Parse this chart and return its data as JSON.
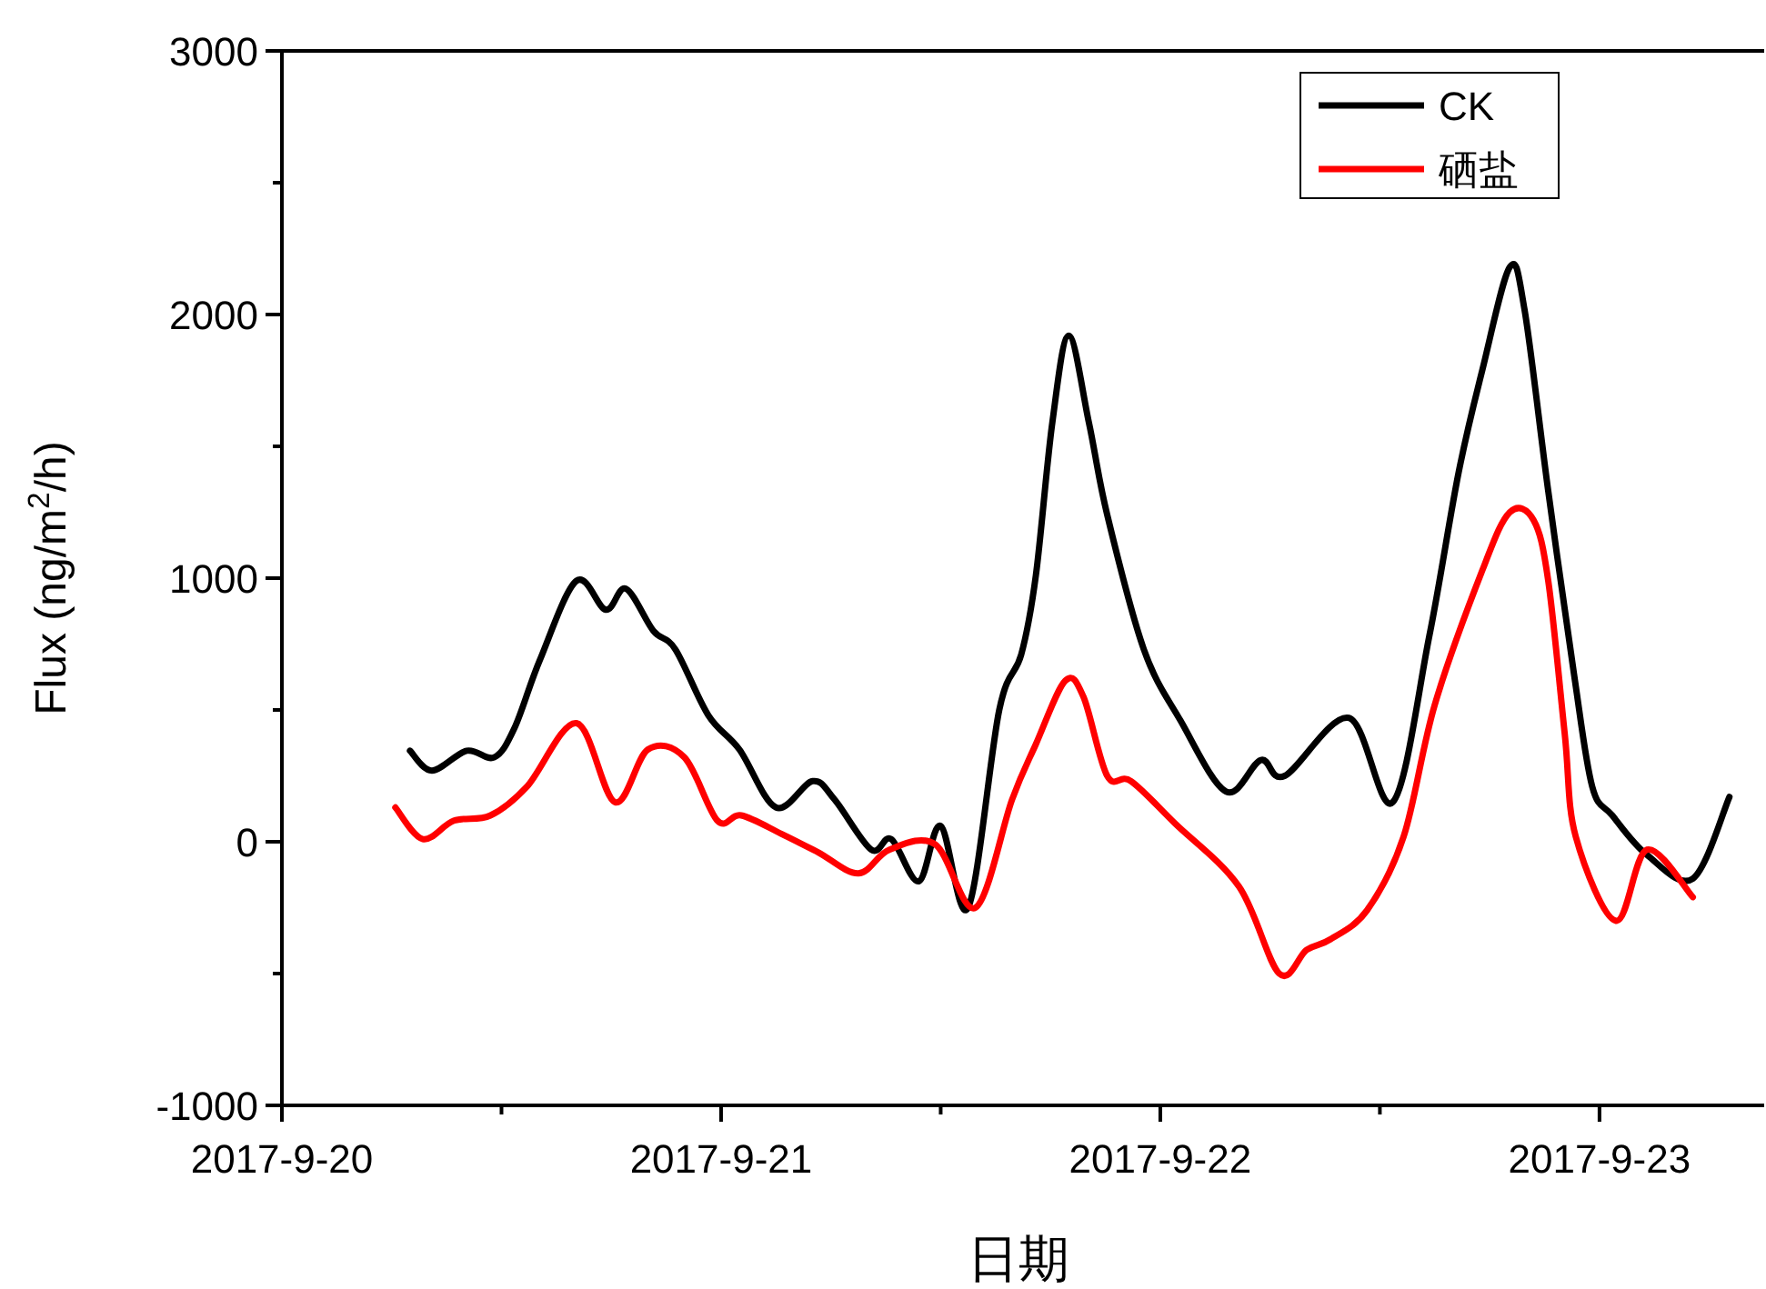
{
  "chart_data": {
    "type": "line",
    "xlabel": "日期",
    "ylabel": "Flux (ng/m$^{2}$/h)",
    "xlim": [
      "2017-09-20",
      "2017-09-23T09:00"
    ],
    "xticks": [
      {
        "value": "2017-09-20",
        "label": "2017-9-20"
      },
      {
        "value": "2017-09-20T12:00",
        "label": null
      },
      {
        "value": "2017-09-21",
        "label": "2017-9-21"
      },
      {
        "value": "2017-09-21T12:00",
        "label": null
      },
      {
        "value": "2017-09-22",
        "label": "2017-9-22"
      },
      {
        "value": "2017-09-22T12:00",
        "label": null
      },
      {
        "value": "2017-09-23",
        "label": "2017-9-23"
      }
    ],
    "ylim": [
      -1000,
      3000
    ],
    "yticks": [
      -1000,
      {
        "value": -500,
        "label": null
      },
      0,
      {
        "value": 500,
        "label": null
      },
      1000,
      {
        "value": 1500,
        "label": null
      },
      2000,
      {
        "value": 2500,
        "label": null
      },
      3000
    ],
    "grid": false,
    "legend": "top right",
    "line_style": "solid",
    "series": [
      {
        "name": "CK",
        "color": "#000000",
        "x": [
          "2017-09-20T07:00",
          "2017-09-20T08:12",
          "2017-09-20T10:06",
          "2017-09-20T11:36",
          "2017-09-20T12:42",
          "2017-09-20T14:06",
          "2017-09-20T16:06",
          "2017-09-20T17:42",
          "2017-09-20T18:48",
          "2017-09-20T20:18",
          "2017-09-20T21:30",
          "2017-09-20T23:18",
          "2017-09-21T01:00",
          "2017-09-21T03:00",
          "2017-09-21T05:00",
          "2017-09-21T06:12",
          "2017-09-21T08:12",
          "2017-09-21T09:18",
          "2017-09-21T10:48",
          "2017-09-21T12:00",
          "2017-09-21T13:30",
          "2017-09-21T15:12",
          "2017-09-21T16:24",
          "2017-09-21T17:12",
          "2017-09-21T18:06",
          "2017-09-21T19:00",
          "2017-09-21T20:06",
          "2017-09-21T21:06",
          "2017-09-21T23:06",
          "2017-09-22T01:06",
          "2017-09-22T03:36",
          "2017-09-22T05:30",
          "2017-09-22T06:48",
          "2017-09-22T10:18",
          "2017-09-22T12:42",
          "2017-09-22T14:42",
          "2017-09-22T16:18",
          "2017-09-22T17:36",
          "2017-09-22T19:06",
          "2017-09-22T19:54",
          "2017-09-22T21:12",
          "2017-09-22T22:36",
          "2017-09-22T23:36",
          "2017-09-23T00:42",
          "2017-09-23T02:36",
          "2017-09-23T05:06",
          "2017-09-23T07:06"
        ],
        "values": [
          345,
          270,
          345,
          320,
          430,
          690,
          990,
          880,
          960,
          800,
          730,
          480,
          350,
          130,
          230,
          160,
          -30,
          10,
          -150,
          60,
          -250,
          500,
          710,
          1010,
          1590,
          1920,
          1590,
          1240,
          730,
          460,
          190,
          310,
          250,
          470,
          150,
          780,
          1400,
          1790,
          2180,
          2020,
          1330,
          640,
          210,
          100,
          -50,
          -140,
          170
        ]
      },
      {
        "name": "硒盐",
        "color": "#ff0000",
        "x": [
          "2017-09-20T06:12",
          "2017-09-20T07:42",
          "2017-09-20T09:24",
          "2017-09-20T11:24",
          "2017-09-20T13:24",
          "2017-09-20T16:06",
          "2017-09-20T18:12",
          "2017-09-20T20:00",
          "2017-09-20T22:00",
          "2017-09-20T23:48",
          "2017-09-21T01:06",
          "2017-09-21T03:18",
          "2017-09-21T05:18",
          "2017-09-21T07:30",
          "2017-09-21T09:12",
          "2017-09-21T11:42",
          "2017-09-21T13:54",
          "2017-09-21T15:54",
          "2017-09-21T17:12",
          "2017-09-21T18:48",
          "2017-09-21T19:48",
          "2017-09-21T21:06",
          "2017-09-21T22:24",
          "2017-09-22T00:48",
          "2017-09-22T04:18",
          "2017-09-22T06:30",
          "2017-09-22T08:00",
          "2017-09-22T09:18",
          "2017-09-22T11:18",
          "2017-09-22T13:18",
          "2017-09-22T15:00",
          "2017-09-22T17:36",
          "2017-09-22T19:06",
          "2017-09-22T20:24",
          "2017-09-22T21:12",
          "2017-09-22T22:06",
          "2017-09-22T22:42",
          "2017-09-23T00:54",
          "2017-09-23T02:36",
          "2017-09-23T05:06"
        ],
        "values": [
          130,
          10,
          80,
          100,
          210,
          450,
          150,
          350,
          320,
          80,
          100,
          30,
          -40,
          -120,
          -30,
          -10,
          -250,
          160,
          370,
          610,
          550,
          250,
          230,
          70,
          -170,
          -500,
          -410,
          -370,
          -260,
          20,
          520,
          1030,
          1250,
          1220,
          990,
          410,
          20,
          -300,
          -30,
          -210
        ]
      }
    ]
  }
}
